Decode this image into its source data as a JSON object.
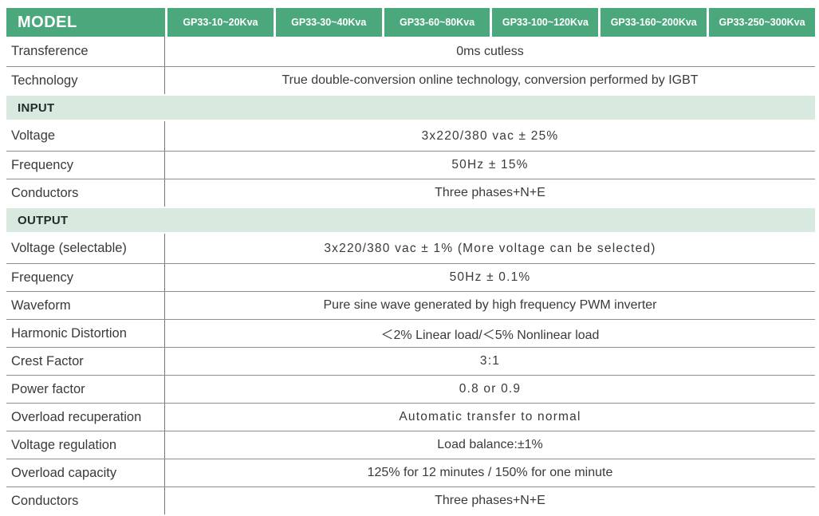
{
  "colors": {
    "header_green": "#4ba87c",
    "band_mint": "#d8eae0",
    "text_dark": "#3a3a3a",
    "header_text": "#ffffff"
  },
  "table": {
    "model_label": "MODEL",
    "columns": [
      "GP33-10~20Kva",
      "GP33-30~40Kva",
      "GP33-60~80Kva",
      "GP33-100~120Kva",
      "GP33-160~200Kva",
      "GP33-250~300Kva"
    ],
    "general_rows": [
      {
        "label": "Transference",
        "value": "0ms cutless"
      },
      {
        "label": "Technology",
        "value": "True double-conversion online technology, conversion performed by IGBT"
      }
    ],
    "sections": [
      {
        "title": "INPUT",
        "rows": [
          {
            "label": "Voltage",
            "value": "3x220/380 vac ± 25%"
          },
          {
            "label": "Frequency",
            "value": "50Hz ± 15%"
          },
          {
            "label": "Conductors",
            "value": "Three phases+N+E"
          }
        ]
      },
      {
        "title": "OUTPUT",
        "rows": [
          {
            "label": "Voltage (selectable)",
            "value": "3x220/380 vac ± 1% (More voltage can be selected)"
          },
          {
            "label": "Frequency",
            "value": "50Hz ± 0.1%"
          },
          {
            "label": "Waveform",
            "value": "Pure sine wave generated by high frequency PWM inverter"
          },
          {
            "label": "Harmonic Distortion",
            "value": "＜2% Linear load/＜5%  Nonlinear load"
          },
          {
            "label": "Crest Factor",
            "value": "3:1"
          },
          {
            "label": "Power factor",
            "value": "0.8  or  0.9"
          },
          {
            "label": "Overload recuperation",
            "value": "Automatic transfer to normal"
          },
          {
            "label": "Voltage regulation",
            "value": "Load balance:±1%"
          },
          {
            "label": "Overload capacity",
            "value": "125% for 12 minutes / 150% for one minute"
          },
          {
            "label": "Conductors",
            "value": "Three phases+N+E"
          }
        ]
      }
    ]
  }
}
